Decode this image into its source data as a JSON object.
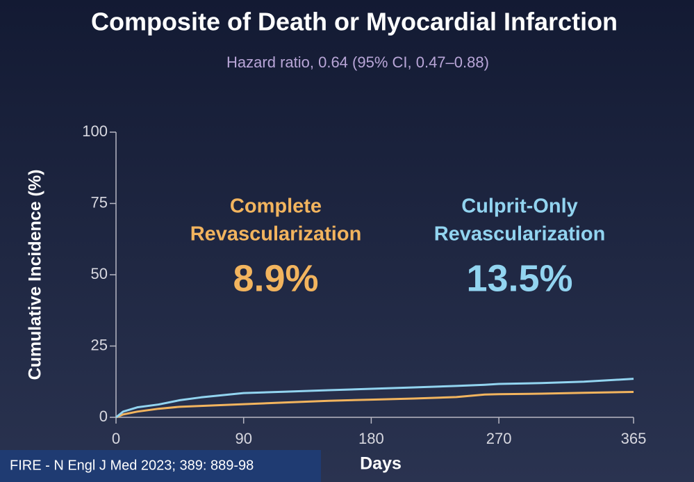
{
  "chart_data": {
    "type": "line",
    "title": "Composite of Death or Myocardial Infarction",
    "subtitle": "Hazard ratio, 0.64 (95% CI, 0.47–0.88)",
    "x_label": "Days",
    "y_label": "Cumulative Incidence (%)",
    "x": [
      0,
      5,
      15,
      30,
      45,
      60,
      90,
      120,
      150,
      180,
      210,
      240,
      260,
      270,
      300,
      330,
      365
    ],
    "series": [
      {
        "color": "#f2b45e",
        "values": [
          0,
          1,
          2,
          3,
          3.7,
          4,
          4.6,
          5.2,
          5.8,
          6.2,
          6.6,
          7.1,
          8,
          8.1,
          8.3,
          8.6,
          8.9
        ]
      },
      {
        "color": "#92d4f0",
        "values": [
          0,
          2,
          3.5,
          4.5,
          6,
          7,
          8.5,
          9,
          9.5,
          10,
          10.5,
          11,
          11.4,
          11.7,
          12,
          12.5,
          13.5
        ]
      }
    ],
    "annotations": [
      {
        "lines": [
          "Complete",
          "Revascularization"
        ],
        "value_label": "8.9%"
      },
      {
        "lines": [
          "Culprit-Only",
          "Revascularization"
        ],
        "value_label": "13.5%"
      }
    ],
    "xlim": [
      0,
      365
    ],
    "ylim": [
      0,
      100
    ],
    "xticks": [
      0,
      90,
      180,
      270,
      365
    ],
    "yticks": [
      0,
      25,
      50,
      75,
      100
    ],
    "source": "FIRE - N Engl J Med 2023; 389: 889-98"
  }
}
